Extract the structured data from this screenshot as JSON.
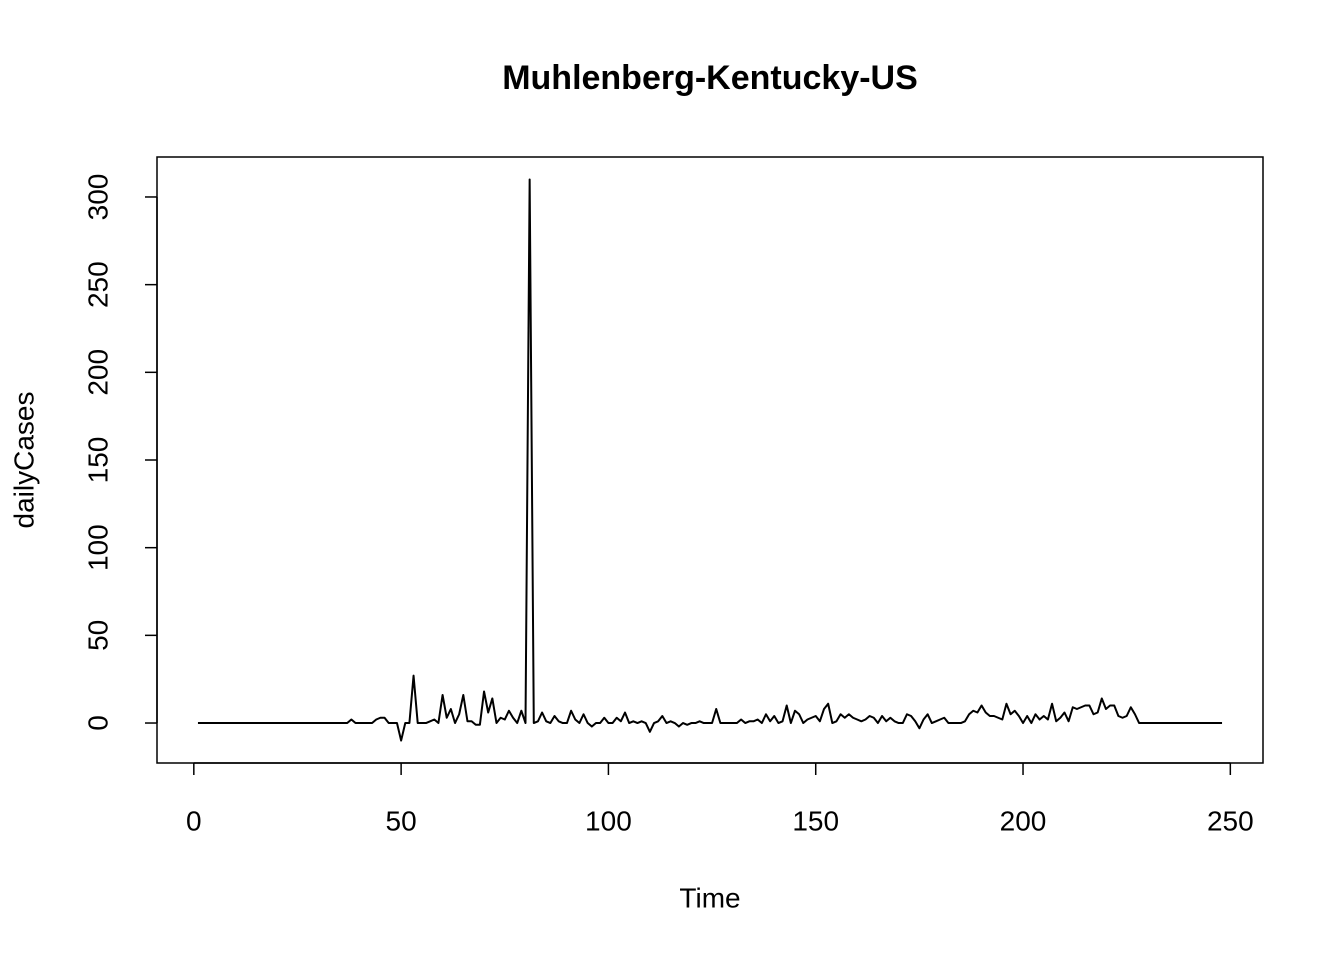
{
  "chart_data": {
    "type": "line",
    "title": "Muhlenberg-Kentucky-US",
    "x_label": "Time",
    "y_label": "dailyCases",
    "x": [
      1,
      2,
      3,
      4,
      5,
      6,
      7,
      8,
      9,
      10,
      11,
      12,
      13,
      14,
      15,
      16,
      17,
      18,
      19,
      20,
      21,
      22,
      23,
      24,
      25,
      26,
      27,
      28,
      29,
      30,
      31,
      32,
      33,
      34,
      35,
      36,
      37,
      38,
      39,
      40,
      41,
      42,
      43,
      44,
      45,
      46,
      47,
      48,
      49,
      50,
      51,
      52,
      53,
      54,
      55,
      56,
      57,
      58,
      59,
      60,
      61,
      62,
      63,
      64,
      65,
      66,
      67,
      68,
      69,
      70,
      71,
      72,
      73,
      74,
      75,
      76,
      77,
      78,
      79,
      80,
      81,
      82,
      83,
      84,
      85,
      86,
      87,
      88,
      89,
      90,
      91,
      92,
      93,
      94,
      95,
      96,
      97,
      98,
      99,
      100,
      101,
      102,
      103,
      104,
      105,
      106,
      107,
      108,
      109,
      110,
      111,
      112,
      113,
      114,
      115,
      116,
      117,
      118,
      119,
      120,
      121,
      122,
      123,
      124,
      125,
      126,
      127,
      128,
      129,
      130,
      131,
      132,
      133,
      134,
      135,
      136,
      137,
      138,
      139,
      140,
      141,
      142,
      143,
      144,
      145,
      146,
      147,
      148,
      149,
      150,
      151,
      152,
      153,
      154,
      155,
      156,
      157,
      158,
      159,
      160,
      161,
      162,
      163,
      164,
      165,
      166,
      167,
      168,
      169,
      170,
      171,
      172,
      173,
      174,
      175,
      176,
      177,
      178,
      179,
      180,
      181,
      182,
      183,
      184,
      185,
      186,
      187,
      188,
      189,
      190,
      191,
      192,
      193,
      194,
      195,
      196,
      197,
      198,
      199,
      200,
      201,
      202,
      203,
      204,
      205,
      206,
      207,
      208,
      209,
      210,
      211,
      212,
      213,
      214,
      215,
      216,
      217,
      218,
      219,
      220,
      221,
      222,
      223,
      224,
      225,
      226,
      227,
      228,
      229,
      230,
      231,
      232,
      233,
      234,
      235,
      236,
      237,
      238,
      239,
      240,
      241,
      242,
      243,
      244,
      245,
      246,
      247,
      248
    ],
    "values": [
      0,
      0,
      0,
      0,
      0,
      0,
      0,
      0,
      0,
      0,
      0,
      0,
      0,
      0,
      0,
      0,
      0,
      0,
      0,
      0,
      0,
      0,
      0,
      0,
      0,
      0,
      0,
      0,
      0,
      0,
      0,
      0,
      0,
      0,
      0,
      0,
      0,
      2,
      0,
      0,
      0,
      0,
      0,
      2,
      3,
      3,
      0,
      0,
      0,
      -10,
      0,
      0,
      27,
      0,
      0,
      0,
      1,
      2,
      0,
      16,
      3,
      8,
      0,
      5,
      16,
      1,
      1,
      -1,
      -1,
      18,
      6,
      14,
      0,
      3,
      2,
      7,
      3,
      0,
      7,
      0,
      310,
      0,
      1,
      6,
      1,
      0,
      4,
      1,
      0,
      0,
      7,
      2,
      0,
      5,
      0,
      -2,
      0,
      0,
      3,
      0,
      0,
      3,
      1,
      6,
      0,
      1,
      0,
      1,
      0,
      -5,
      0,
      1,
      4,
      0,
      1,
      0,
      -2,
      0,
      -1,
      0,
      0,
      1,
      0,
      0,
      0,
      8,
      0,
      0,
      0,
      0,
      0,
      2,
      0,
      1,
      1,
      2,
      0,
      5,
      1,
      4,
      0,
      1,
      10,
      0,
      7,
      5,
      0,
      2,
      3,
      4,
      1,
      8,
      11,
      0,
      1,
      5,
      3,
      5,
      3,
      2,
      1,
      2,
      4,
      3,
      0,
      4,
      1,
      3,
      1,
      0,
      0,
      5,
      4,
      1,
      -3,
      2,
      5,
      0,
      1,
      2,
      3,
      0,
      0,
      0,
      0,
      1,
      5,
      7,
      6,
      10,
      6,
      4,
      4,
      3,
      2,
      11,
      5,
      7,
      4,
      0,
      4,
      0,
      5,
      2,
      4,
      2,
      11,
      1,
      3,
      6,
      1,
      9,
      8,
      9,
      10,
      10,
      5,
      6,
      14,
      8,
      10,
      10,
      4,
      3,
      4,
      9,
      5,
      0,
      0,
      0,
      0,
      0,
      0,
      0,
      0,
      0,
      0,
      0,
      0,
      0,
      0,
      0,
      0,
      0,
      0,
      0,
      0,
      0
    ],
    "color": "#000000",
    "xlim": [
      -8.88,
      257.88
    ],
    "ylim": [
      -22.8,
      322.8
    ],
    "xticks": [
      0,
      50,
      100,
      150,
      200,
      250
    ],
    "yticks": [
      0,
      50,
      100,
      150,
      200,
      250,
      300
    ]
  }
}
